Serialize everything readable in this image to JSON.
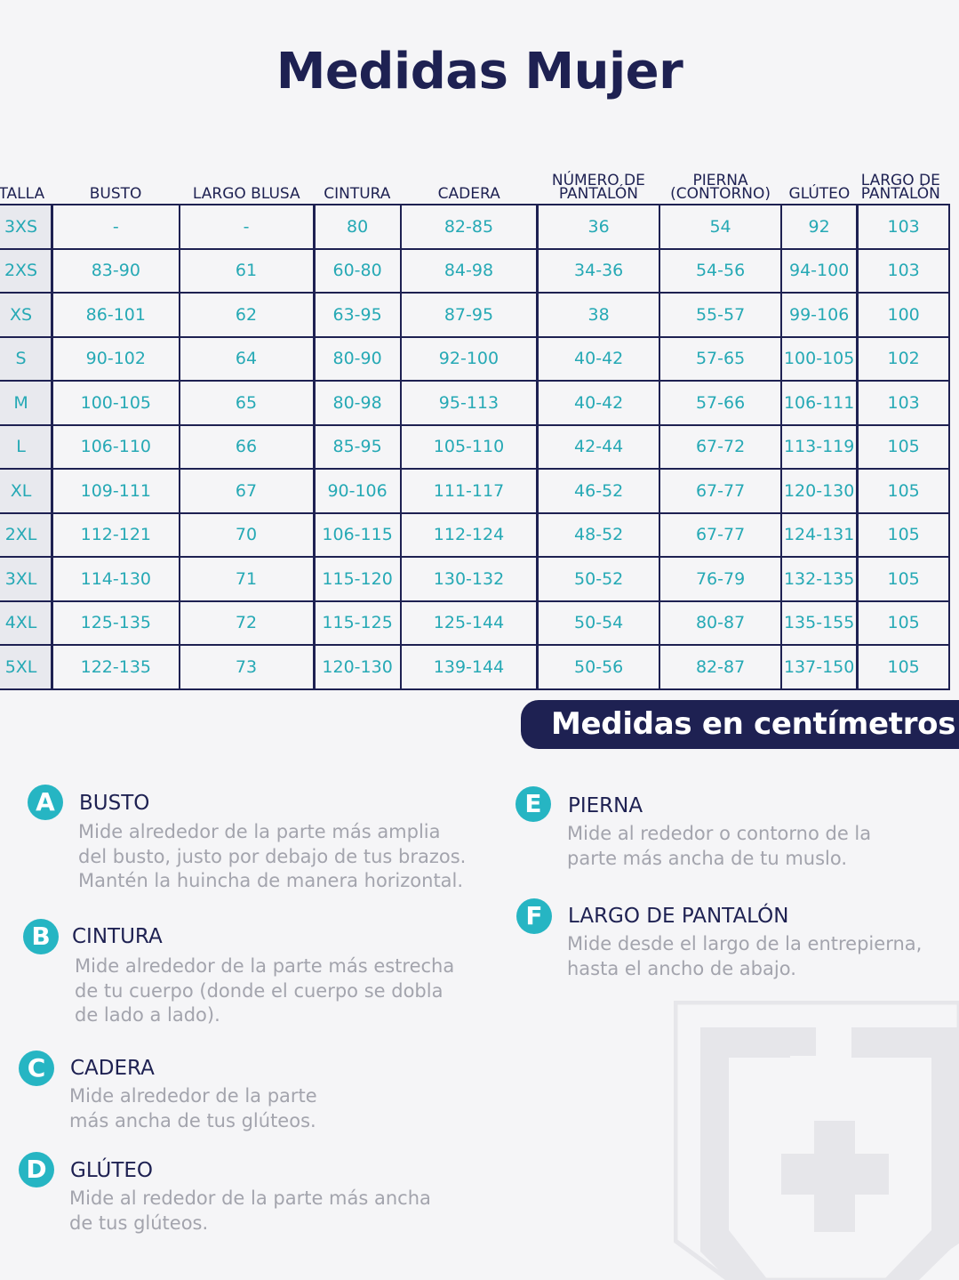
{
  "title": "Medidas Mujer",
  "table": {
    "headers": [
      {
        "key": "talla",
        "line1": "TALLA",
        "line2": ""
      },
      {
        "key": "busto",
        "line1": "BUSTO",
        "line2": ""
      },
      {
        "key": "largo_blusa",
        "line1": "LARGO BLUSA",
        "line2": ""
      },
      {
        "key": "cintura",
        "line1": "CINTURA",
        "line2": ""
      },
      {
        "key": "cadera",
        "line1": "CADERA",
        "line2": ""
      },
      {
        "key": "numero_pantalon",
        "line1": "NÚMERO DE",
        "line2": "PANTALÓN"
      },
      {
        "key": "pierna",
        "line1": "PIERNA",
        "line2": "(CONTORNO)"
      },
      {
        "key": "gluteo",
        "line1": "GLÚTEO",
        "line2": ""
      },
      {
        "key": "largo_pantalon",
        "line1": "LARGO DE",
        "line2": "PANTALÓN"
      }
    ],
    "rows": [
      [
        "3XS",
        "-",
        "-",
        "80",
        "82-85",
        "36",
        "54",
        "92",
        "103"
      ],
      [
        "2XS",
        "83-90",
        "61",
        "60-80",
        "84-98",
        "34-36",
        "54-56",
        "94-100",
        "103"
      ],
      [
        "XS",
        "86-101",
        "62",
        "63-95",
        "87-95",
        "38",
        "55-57",
        "99-106",
        "100"
      ],
      [
        "S",
        "90-102",
        "64",
        "80-90",
        "92-100",
        "40-42",
        "57-65",
        "100-105",
        "102"
      ],
      [
        "M",
        "100-105",
        "65",
        "80-98",
        "95-113",
        "40-42",
        "57-66",
        "106-111",
        "103"
      ],
      [
        "L",
        "106-110",
        "66",
        "85-95",
        "105-110",
        "42-44",
        "67-72",
        "113-119",
        "105"
      ],
      [
        "XL",
        "109-111",
        "67",
        "90-106",
        "111-117",
        "46-52",
        "67-77",
        "120-130",
        "105"
      ],
      [
        "2XL",
        "112-121",
        "70",
        "106-115",
        "112-124",
        "48-52",
        "67-77",
        "124-131",
        "105"
      ],
      [
        "3XL",
        "114-130",
        "71",
        "115-120",
        "130-132",
        "50-52",
        "76-79",
        "132-135",
        "105"
      ],
      [
        "4XL",
        "125-135",
        "72",
        "115-125",
        "125-144",
        "50-54",
        "80-87",
        "135-155",
        "105"
      ],
      [
        "5XL",
        "122-135",
        "73",
        "120-130",
        "139-144",
        "50-56",
        "82-87",
        "137-150",
        "105"
      ]
    ]
  },
  "units_badge": "Medidas en centímetros",
  "guide": {
    "a": {
      "letter": "A",
      "title": "BUSTO",
      "desc": "Mide alrededor de la parte más amplia\ndel busto, justo por debajo de tus brazos.\nMantén la huincha de manera horizontal."
    },
    "b": {
      "letter": "B",
      "title": "CINTURA",
      "desc": "Mide alrededor de la parte más estrecha\nde tu cuerpo (donde el cuerpo se dobla\nde lado a lado)."
    },
    "c": {
      "letter": "C",
      "title": "CADERA",
      "desc": "Mide alrededor de la parte\nmás ancha de tus glúteos."
    },
    "d": {
      "letter": "D",
      "title": "GLÚTEO",
      "desc": "Mide al rededor de la parte más ancha\nde tus glúteos."
    },
    "e": {
      "letter": "E",
      "title": "PIERNA",
      "desc": "Mide al rededor o contorno de la\nparte más ancha de tu muslo."
    },
    "f": {
      "letter": "F",
      "title": "LARGO DE PANTALÓN",
      "desc": "Mide desde el largo de la entrepierna,\nhasta el ancho de abajo."
    }
  },
  "colors": {
    "navy": "#1e2152",
    "teal": "#26a9b5",
    "circle": "#26b5c3",
    "gray_text": "#a3a4ad",
    "background": "#f5f5f7"
  },
  "icons": {
    "watermark": "shield-cross-logo"
  }
}
